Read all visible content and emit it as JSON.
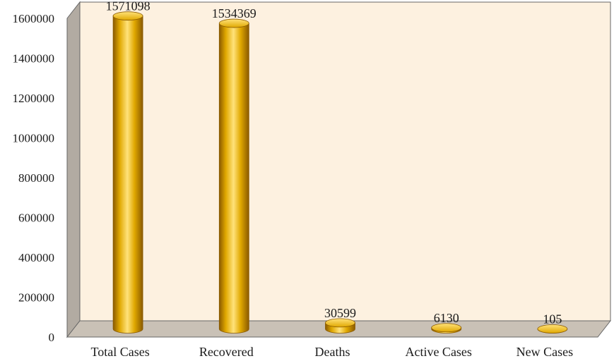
{
  "chart_data": {
    "type": "bar",
    "style": "3d-cylinder",
    "title": "",
    "xlabel": "",
    "ylabel": "",
    "categories": [
      "Total Cases",
      "Recovered",
      "Deaths",
      "Active Cases",
      "New Cases"
    ],
    "values": [
      1571098,
      1534369,
      30599,
      6130,
      105
    ],
    "data_labels": [
      "1571098",
      "1534369",
      "30599",
      "6130",
      "105"
    ],
    "ylim": [
      0,
      1600000
    ],
    "yticks": [
      0,
      200000,
      400000,
      600000,
      800000,
      1000000,
      1200000,
      1400000,
      1600000
    ],
    "ytick_labels": [
      "0",
      "200000",
      "400000",
      "600000",
      "800000",
      "1000000",
      "1200000",
      "1400000",
      "1600000"
    ],
    "grid": false,
    "legend": "none",
    "colors": {
      "bar": "#e0a800",
      "bar_dark": "#8a5a00",
      "bar_light": "#ffe27a",
      "back_wall": "#fdf1e0",
      "side_wall": "#b2aba2",
      "floor": "#c9c1b6",
      "outline": "#666666"
    }
  }
}
